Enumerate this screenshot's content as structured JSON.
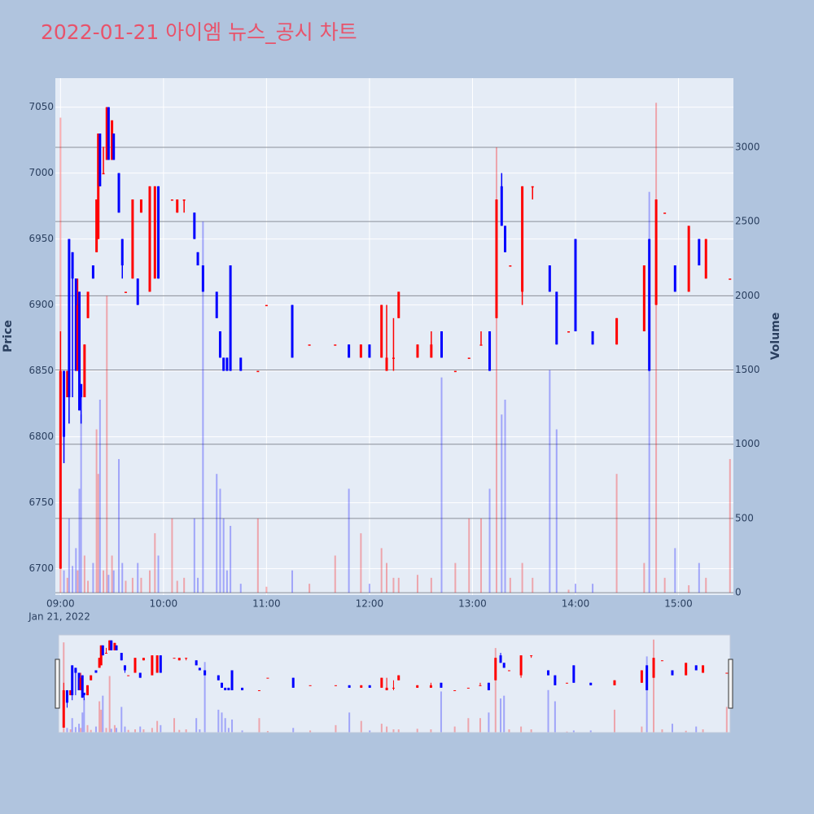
{
  "chart_data": {
    "type": "candlestick",
    "title": "2022-01-21 아이엠 뉴스_공시 차트",
    "y_title": "Price",
    "y2_title": "Volume",
    "x_sublabel": "Jan 21, 2022",
    "increasing_color": "#ff0000",
    "decreasing_color": "#0000ff",
    "xlim": [
      "08:57",
      "15:32"
    ],
    "xticks": [
      "09:00",
      "10:00",
      "11:00",
      "12:00",
      "13:00",
      "14:00",
      "15:00"
    ],
    "ylim": [
      6680,
      7072
    ],
    "yticks": [
      6700,
      6750,
      6800,
      6850,
      6900,
      6950,
      7000,
      7050
    ],
    "y2lim": [
      -16,
      3466
    ],
    "y2ticks": [
      0,
      500,
      1000,
      1500,
      2000,
      2500,
      3000
    ],
    "x": [
      "09:00",
      "09:02",
      "09:04",
      "09:05",
      "09:07",
      "09:09",
      "09:10",
      "09:11",
      "09:12",
      "09:14",
      "09:16",
      "09:19",
      "09:21",
      "09:22",
      "09:23",
      "09:25",
      "09:27",
      "09:28",
      "09:30",
      "09:31",
      "09:34",
      "09:36",
      "09:38",
      "09:42",
      "09:45",
      "09:47",
      "09:52",
      "09:55",
      "09:57",
      "10:05",
      "10:08",
      "10:12",
      "10:18",
      "10:20",
      "10:23",
      "10:31",
      "10:33",
      "10:35",
      "10:37",
      "10:39",
      "10:45",
      "10:55",
      "11:00",
      "11:15",
      "11:25",
      "11:40",
      "11:48",
      "11:55",
      "12:00",
      "12:07",
      "12:10",
      "12:14",
      "12:17",
      "12:28",
      "12:36",
      "12:42",
      "12:50",
      "12:58",
      "13:05",
      "13:10",
      "13:14",
      "13:17",
      "13:19",
      "13:22",
      "13:29",
      "13:35",
      "13:45",
      "13:49",
      "13:56",
      "14:00",
      "14:10",
      "14:24",
      "14:40",
      "14:43",
      "14:47",
      "14:52",
      "14:58",
      "15:06",
      "15:12",
      "15:16",
      "15:30"
    ],
    "open": [
      6700,
      6850,
      6830,
      6950,
      6940,
      6920,
      6850,
      6910,
      6840,
      6830,
      6890,
      6930,
      6940,
      6950,
      7030,
      7000,
      7010,
      7050,
      7010,
      7030,
      7000,
      6950,
      6910,
      6920,
      6920,
      6970,
      6910,
      6920,
      6990,
      6980,
      6970,
      6980,
      6970,
      6940,
      6930,
      6910,
      6880,
      6860,
      6860,
      6930,
      6860,
      6850,
      6900,
      6900,
      6870,
      6870,
      6870,
      6860,
      6870,
      6860,
      6850,
      6860,
      6890,
      6860,
      6860,
      6880,
      6850,
      6860,
      6870,
      6880,
      6890,
      6990,
      6960,
      6930,
      6910,
      6990,
      6930,
      6910,
      6880,
      6950,
      6880,
      6870,
      6880,
      6950,
      6900,
      6970,
      6930,
      6910,
      6950,
      6920,
      6920
    ],
    "high": [
      6880,
      6850,
      6850,
      6950,
      6940,
      6920,
      6920,
      6910,
      6840,
      6870,
      6910,
      6930,
      6980,
      7030,
      7030,
      7020,
      7050,
      7050,
      7040,
      7030,
      7000,
      6950,
      6910,
      6980,
      6920,
      6980,
      6990,
      6990,
      6990,
      6980,
      6980,
      6980,
      6970,
      6940,
      6930,
      6910,
      6880,
      6860,
      6860,
      6930,
      6860,
      6850,
      6900,
      6900,
      6870,
      6870,
      6870,
      6870,
      6870,
      6900,
      6900,
      6890,
      6910,
      6870,
      6880,
      6880,
      6850,
      6860,
      6880,
      6880,
      6980,
      7000,
      6960,
      6930,
      6990,
      6990,
      6930,
      6910,
      6880,
      6950,
      6880,
      6890,
      6930,
      6950,
      6980,
      6970,
      6930,
      6960,
      6950,
      6950,
      6920
    ],
    "low": [
      6700,
      6780,
      6830,
      6810,
      6830,
      6850,
      6850,
      6820,
      6810,
      6830,
      6890,
      6920,
      6940,
      6950,
      6990,
      7000,
      7010,
      7010,
      7010,
      7010,
      6970,
      6920,
      6910,
      6920,
      6900,
      6970,
      6910,
      6920,
      6920,
      6980,
      6970,
      6970,
      6950,
      6930,
      6910,
      6890,
      6860,
      6850,
      6850,
      6850,
      6850,
      6850,
      6900,
      6860,
      6870,
      6870,
      6860,
      6860,
      6860,
      6860,
      6850,
      6850,
      6890,
      6860,
      6860,
      6860,
      6850,
      6860,
      6870,
      6850,
      6890,
      6960,
      6940,
      6930,
      6900,
      6980,
      6910,
      6870,
      6880,
      6880,
      6870,
      6870,
      6880,
      6850,
      6900,
      6970,
      6910,
      6910,
      6930,
      6920,
      6920
    ],
    "close": [
      6850,
      6800,
      6850,
      6830,
      6920,
      6850,
      6900,
      6820,
      6830,
      6870,
      6910,
      6920,
      6980,
      7030,
      6990,
      7000,
      7050,
      7010,
      7040,
      7010,
      6970,
      6930,
      6910,
      6980,
      6900,
      6980,
      6990,
      6990,
      6920,
      6980,
      6980,
      6980,
      6950,
      6930,
      6910,
      6890,
      6860,
      6850,
      6850,
      6850,
      6850,
      6850,
      6900,
      6860,
      6870,
      6870,
      6860,
      6870,
      6860,
      6900,
      6860,
      6860,
      6910,
      6870,
      6870,
      6860,
      6850,
      6860,
      6870,
      6850,
      6980,
      6960,
      6940,
      6930,
      6990,
      6990,
      6910,
      6870,
      6880,
      6880,
      6870,
      6890,
      6930,
      6850,
      6980,
      6970,
      6910,
      6960,
      6930,
      6950,
      6920
    ],
    "volume": [
      3200,
      150,
      100,
      500,
      180,
      300,
      150,
      700,
      1200,
      250,
      80,
      200,
      1100,
      800,
      1300,
      150,
      2000,
      120,
      250,
      150,
      900,
      200,
      80,
      100,
      200,
      100,
      150,
      400,
      250,
      500,
      80,
      100,
      500,
      100,
      2500,
      800,
      700,
      500,
      150,
      450,
      60,
      500,
      40,
      150,
      60,
      250,
      700,
      400,
      60,
      300,
      200,
      100,
      100,
      120,
      100,
      1450,
      200,
      500,
      500,
      700,
      3000,
      1200,
      1300,
      100,
      200,
      100,
      1500,
      1100,
      20,
      60,
      60,
      800,
      200,
      2700,
      3300,
      100,
      300,
      50,
      200,
      100,
      900
    ]
  }
}
